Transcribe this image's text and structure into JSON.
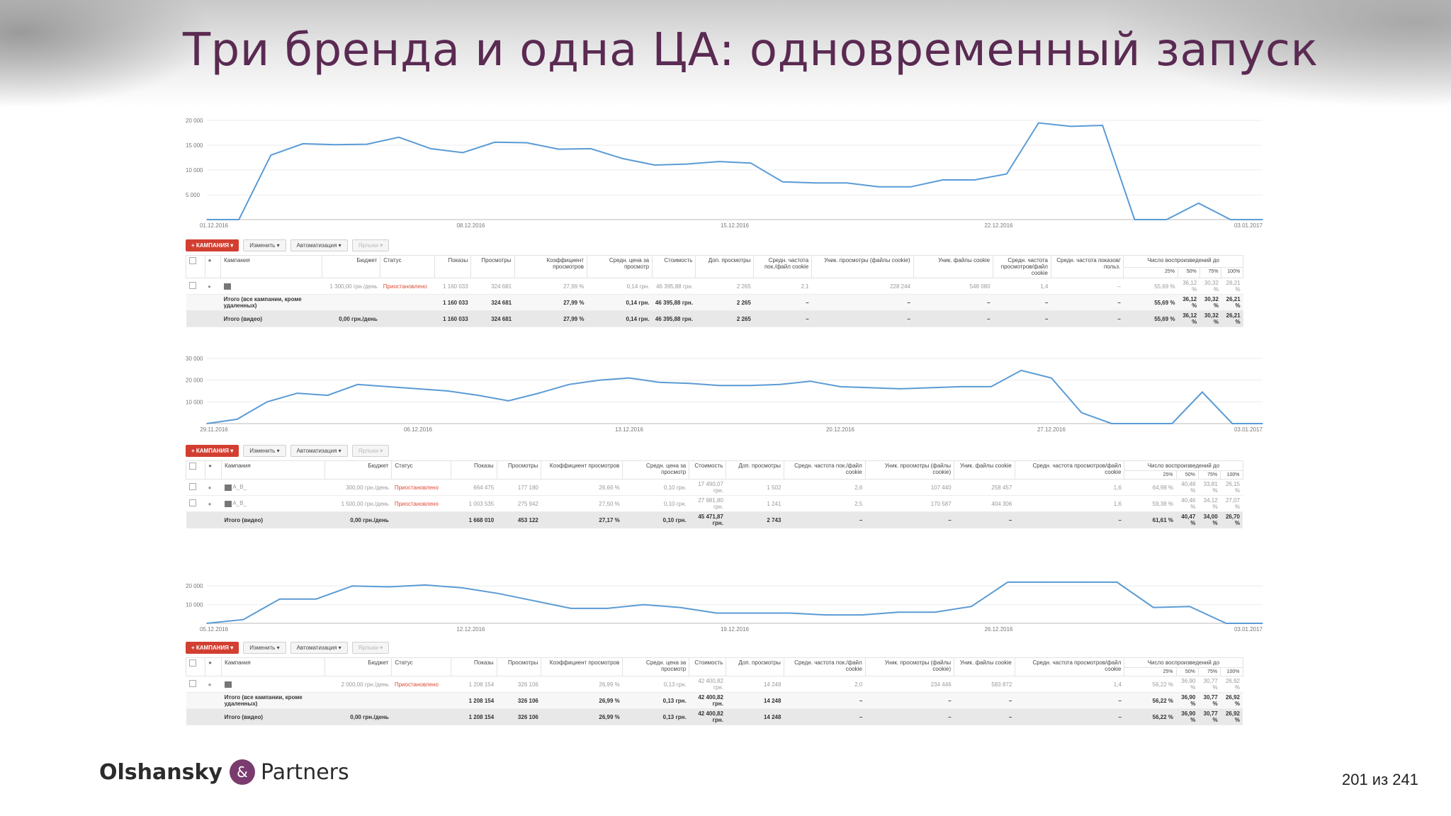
{
  "slide": {
    "title": "Три бренда и одна ЦА: одновременный запуск",
    "page": "201 из 241"
  },
  "logo": {
    "name1": "Olshansky",
    "amp": "&",
    "name2": "Partners"
  },
  "toolbar": {
    "campaigns": "+ КАМПАНИЯ ▾",
    "edit": "Изменить ▾",
    "auto": "Автоматизация ▾",
    "labels": "Ярлыки ▾"
  },
  "table_headers": {
    "campaign": "Кампания",
    "budget": "Бюджет",
    "status": "Статус",
    "impressions": "Показы",
    "views": "Просмотры",
    "view_rate": "Коэффициент просмотров",
    "avg_cpv": "Средн. цена за просмотр",
    "cost": "Стоимость",
    "extra_views": "Доп. просмотры",
    "freq_cookie": "Средн. частота пок./файл cookie",
    "uniq_views": "Уник. просмотры (файлы cookie)",
    "uniq_cookies": "Уник. файлы cookie",
    "view_freq": "Средн. частота просмотров/файл cookie",
    "impr_freq": "Средн. частота показов/польз.",
    "played_to": "Число воспроизведений до",
    "q25": "25%",
    "q50": "50%",
    "q75": "75%",
    "q100": "100%"
  },
  "blocks": [
    {
      "chart_data": {
        "type": "line",
        "ylim": [
          0,
          20000
        ],
        "yticks": [
          "20 000",
          "15 000",
          "10 000",
          "5 000"
        ],
        "xtick_labels": [
          "01.12.2016",
          "08.12.2016",
          "15.12.2016",
          "22.12.2016",
          "03.01.2017"
        ],
        "series": [
          {
            "values": [
              0,
              0,
              13000,
              15300,
              15100,
              15200,
              16600,
              14300,
              13500,
              15600,
              15500,
              14200,
              14300,
              12300,
              11000,
              11200,
              11700,
              11400,
              7600,
              7400,
              7400,
              6600,
              6600,
              8000,
              8000,
              9200,
              19500,
              18800,
              19000,
              0,
              0,
              3300,
              0,
              0
            ]
          }
        ]
      },
      "rows": [
        {
          "kind": "data",
          "icon": "",
          "budget": "1 300,00 грн./день",
          "status": "Приостановлено",
          "impressions": "1 160 033",
          "views": "324 681",
          "view_rate": "27,99 %",
          "avg_cpv": "0,14 грн.",
          "cost": "46 395,88 грн.",
          "extra_views": "2 265",
          "freq_cookie": "2,1",
          "uniq_views": "228 244",
          "uniq_cookies": "548 080",
          "view_freq": "1,4",
          "impr_freq": "–",
          "q25": "55,69 %",
          "q50": "36,12 %",
          "q75": "30,32 %",
          "q100": "26,21 %"
        },
        {
          "kind": "tot",
          "name": "Итого (все кампании, кроме удаленных)",
          "budget": "",
          "impressions": "1 160 033",
          "views": "324 681",
          "view_rate": "27,99 %",
          "avg_cpv": "0,14 грн.",
          "cost": "46 395,88 грн.",
          "extra_views": "2 265",
          "freq_cookie": "–",
          "uniq_views": "–",
          "uniq_cookies": "–",
          "view_freq": "–",
          "impr_freq": "–",
          "q25": "55,69 %",
          "q50": "36,12 %",
          "q75": "30,32 %",
          "q100": "26,21 %"
        },
        {
          "kind": "tot2",
          "name": "Итого (видео)",
          "budget": "0,00 грн./день",
          "impressions": "1 160 033",
          "views": "324 681",
          "view_rate": "27,99 %",
          "avg_cpv": "0,14 грн.",
          "cost": "46 395,88 грн.",
          "extra_views": "2 265",
          "freq_cookie": "–",
          "uniq_views": "–",
          "uniq_cookies": "–",
          "view_freq": "–",
          "impr_freq": "–",
          "q25": "55,69 %",
          "q50": "36,12 %",
          "q75": "30,32 %",
          "q100": "26,21 %"
        }
      ]
    },
    {
      "chart_data": {
        "type": "line",
        "ylim": [
          0,
          30000
        ],
        "yticks": [
          "30 000",
          "20 000",
          "10 000"
        ],
        "xtick_labels": [
          "29.11.2016",
          "06.12.2016",
          "13.12.2016",
          "20.12.2016",
          "27.12.2016",
          "03.01.2017"
        ],
        "series": [
          {
            "values": [
              0,
              2000,
              10000,
              14000,
              13000,
              18000,
              17000,
              16000,
              15000,
              13000,
              10500,
              14000,
              18000,
              20000,
              21000,
              19000,
              18500,
              17500,
              17500,
              18000,
              19500,
              17000,
              16500,
              16000,
              16500,
              17000,
              17000,
              24500,
              21000,
              5000,
              0,
              0,
              0,
              14500,
              0,
              0
            ]
          }
        ]
      },
      "rows": [
        {
          "kind": "data",
          "icon": "A_B_",
          "budget": "300,00 грн./день",
          "status": "Приостановлено",
          "impressions": "664 475",
          "views": "177 180",
          "view_rate": "26,66 %",
          "avg_cpv": "0,10 грн.",
          "cost": "17 490,07 грн.",
          "extra_views": "1 502",
          "freq_cookie": "2,6",
          "uniq_views": "107 440",
          "uniq_cookies": "258 457",
          "view_freq": "1,6",
          "impr_freq": "",
          "q25": "64,98 %",
          "q50": "40,48 %",
          "q75": "33,81 %",
          "q100": "26,15 %"
        },
        {
          "kind": "data",
          "icon": "A_B_",
          "budget": "1 500,00 грн./день",
          "status": "Приостановлено",
          "impressions": "1 003 535",
          "views": "275 942",
          "view_rate": "27,50 %",
          "avg_cpv": "0,10 грн.",
          "cost": "27 981,80 грн.",
          "extra_views": "1 241",
          "freq_cookie": "2,5",
          "uniq_views": "170 587",
          "uniq_cookies": "404 306",
          "view_freq": "1,6",
          "impr_freq": "",
          "q25": "59,38 %",
          "q50": "40,46 %",
          "q75": "34,12 %",
          "q100": "27,07 %"
        },
        {
          "kind": "tot2",
          "name": "Итого (видео)",
          "budget": "0,00 грн./день",
          "impressions": "1 668 010",
          "views": "453 122",
          "view_rate": "27,17 %",
          "avg_cpv": "0,10 грн.",
          "cost": "45 471,87 грн.",
          "extra_views": "2 743",
          "freq_cookie": "–",
          "uniq_views": "–",
          "uniq_cookies": "–",
          "view_freq": "–",
          "impr_freq": "",
          "q25": "61,61 %",
          "q50": "40,47 %",
          "q75": "34,00 %",
          "q100": "26,70 %"
        }
      ]
    },
    {
      "chart_data": {
        "type": "line",
        "ylim": [
          0,
          25000
        ],
        "yticks": [
          "20 000",
          "10 000"
        ],
        "xtick_labels": [
          "05.12.2016",
          "12.12.2016",
          "19.12.2016",
          "26.12.2016",
          "03.01.2017"
        ],
        "series": [
          {
            "values": [
              0,
              2000,
              13000,
              13000,
              20000,
              19500,
              20500,
              19000,
              16000,
              12000,
              8000,
              8000,
              10000,
              8500,
              5500,
              5500,
              5500,
              4500,
              4500,
              6000,
              6000,
              9000,
              22000,
              22000,
              22000,
              22000,
              8500,
              9000,
              0,
              0
            ]
          }
        ]
      },
      "rows": [
        {
          "kind": "data",
          "icon": "",
          "budget": "2 000,00 грн./день",
          "status": "Приостановлено",
          "impressions": "1 208 154",
          "views": "326 106",
          "view_rate": "26,99 %",
          "avg_cpv": "0,13 грн.",
          "cost": "42 400,82 грн.",
          "extra_views": "14 248",
          "freq_cookie": "2,0",
          "uniq_views": "234 446",
          "uniq_cookies": "583 872",
          "view_freq": "1,4",
          "impr_freq": "",
          "q25": "56,22 %",
          "q50": "36,90 %",
          "q75": "30,77 %",
          "q100": "26,92 %"
        },
        {
          "kind": "tot",
          "name": "Итого (все кампании, кроме удаленных)",
          "budget": "",
          "impressions": "1 208 154",
          "views": "326 106",
          "view_rate": "26,99 %",
          "avg_cpv": "0,13 грн.",
          "cost": "42 400,82 грн.",
          "extra_views": "14 248",
          "freq_cookie": "–",
          "uniq_views": "–",
          "uniq_cookies": "–",
          "view_freq": "–",
          "impr_freq": "",
          "q25": "56,22 %",
          "q50": "36,90 %",
          "q75": "30,77 %",
          "q100": "26,92 %"
        },
        {
          "kind": "tot2",
          "name": "Итого (видео)",
          "budget": "0,00 грн./день",
          "impressions": "1 208 154",
          "views": "326 106",
          "view_rate": "26,99 %",
          "avg_cpv": "0,13 грн.",
          "cost": "42 400,82 грн.",
          "extra_views": "14 248",
          "freq_cookie": "–",
          "uniq_views": "–",
          "uniq_cookies": "–",
          "view_freq": "–",
          "impr_freq": "",
          "q25": "56,22 %",
          "q50": "36,90 %",
          "q75": "30,77 %",
          "q100": "26,92 %"
        }
      ]
    }
  ]
}
